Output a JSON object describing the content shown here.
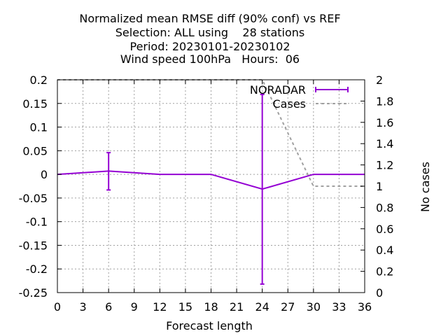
{
  "chart_data": {
    "type": "line",
    "title_lines": [
      "Normalized mean RMSE diff (90% conf) vs REF",
      "Selection: ALL using    28 stations",
      "Period: 20230101-20230102",
      "Wind speed 100hPa   Hours:  06"
    ],
    "xlabel": "Forecast length",
    "ylabel": "",
    "y2label": "No cases",
    "xlim": [
      0,
      36
    ],
    "ylim": [
      -0.25,
      0.2
    ],
    "y2lim": [
      0,
      2
    ],
    "xticks": [
      0,
      3,
      6,
      9,
      12,
      15,
      18,
      21,
      24,
      27,
      30,
      33,
      36
    ],
    "yticks": [
      -0.25,
      -0.2,
      -0.15,
      -0.1,
      -0.05,
      0,
      0.05,
      0.1,
      0.15,
      0.2
    ],
    "ytick_labels": [
      "-0.25",
      "-0.2",
      "-0.15",
      "-0.1",
      "-0.05",
      "0",
      "0.05",
      "0.1",
      "0.15",
      "0.2"
    ],
    "y2ticks": [
      0,
      0.2,
      0.4,
      0.6,
      0.8,
      1,
      1.2,
      1.4,
      1.6,
      1.8,
      2
    ],
    "y2tick_labels": [
      "0",
      "0.2",
      "0.4",
      "0.6",
      "0.8",
      "1",
      "1.2",
      "1.4",
      "1.6",
      "1.8",
      "2"
    ],
    "grid": true,
    "legend_position": "top-right",
    "series": [
      {
        "name": "NORADAR",
        "color": "#9400d3",
        "axis": "y1",
        "x": [
          0,
          6,
          12,
          18,
          24,
          30,
          36
        ],
        "y": [
          0.0,
          0.007,
          0.0,
          0.0,
          -0.031,
          0.0,
          0.0
        ],
        "err_low": [
          0.0,
          -0.033,
          0.0,
          0.0,
          -0.232,
          0.0,
          0.0
        ],
        "err_high": [
          0.0,
          0.046,
          0.0,
          0.0,
          0.169,
          0.0,
          0.0
        ],
        "errorbars": [
          false,
          true,
          false,
          false,
          true,
          false,
          false
        ]
      },
      {
        "name": "Cases",
        "color": "#a0a0a0",
        "axis": "y2",
        "dashed": true,
        "x": [
          0,
          6,
          12,
          18,
          24,
          30,
          36
        ],
        "y": [
          2,
          2,
          2,
          2,
          2,
          1,
          1
        ]
      }
    ]
  }
}
